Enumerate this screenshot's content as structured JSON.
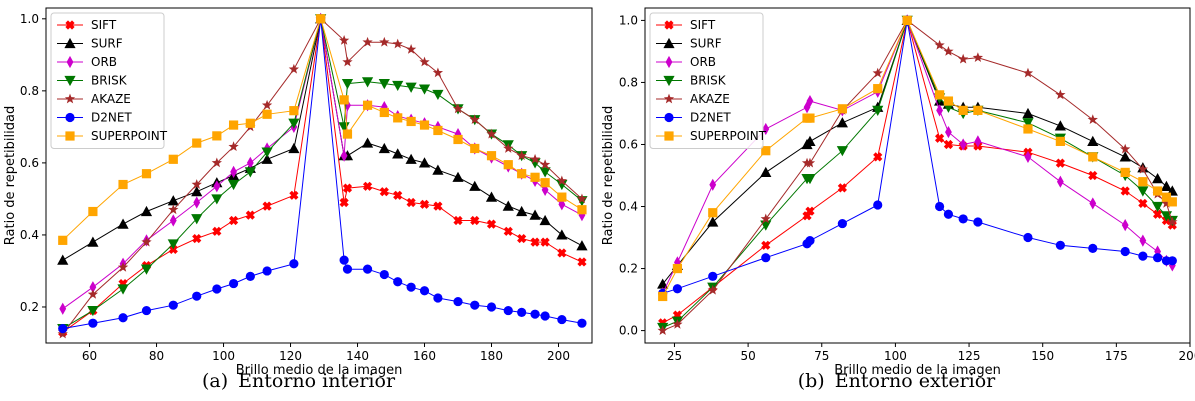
{
  "chart_data": [
    {
      "type": "line",
      "xlabel": "Brillo medio de la imagen",
      "ylabel": "Ratio de repetibilidad",
      "xlim": [
        47,
        210
      ],
      "ylim": [
        0.1,
        1.03
      ],
      "xticks": [
        60,
        80,
        100,
        120,
        140,
        160,
        180,
        200
      ],
      "yticks": [
        0.2,
        0.4,
        0.6,
        0.8,
        1.0
      ],
      "ytick_labels": [
        "0.2",
        "0.4",
        "0.6",
        "0.8",
        "1.0"
      ],
      "legend_position": "upper-left",
      "caption_label": "(a)",
      "caption_text": "Entorno interior",
      "x": [
        52,
        61,
        70,
        77,
        85,
        92,
        98,
        103,
        108,
        113,
        121,
        129,
        136,
        137,
        143,
        148,
        152,
        156,
        160,
        164,
        170,
        175,
        180,
        185,
        189,
        193,
        196,
        201,
        207
      ],
      "series": [
        {
          "name": "SIFT",
          "color": "#ff0000",
          "marker": "x",
          "values": [
            0.13,
            0.19,
            0.265,
            0.315,
            0.36,
            0.39,
            0.41,
            0.44,
            0.455,
            0.48,
            0.51,
            1.0,
            0.49,
            0.53,
            0.535,
            0.52,
            0.51,
            0.49,
            0.485,
            0.48,
            0.44,
            0.44,
            0.43,
            0.41,
            0.39,
            0.38,
            0.38,
            0.35,
            0.325
          ]
        },
        {
          "name": "SURF",
          "color": "#000000",
          "marker": "^",
          "values": [
            0.33,
            0.38,
            0.43,
            0.465,
            0.495,
            0.52,
            0.545,
            0.565,
            0.585,
            0.61,
            0.64,
            1.0,
            0.62,
            0.62,
            0.655,
            0.64,
            0.625,
            0.61,
            0.6,
            0.58,
            0.56,
            0.535,
            0.505,
            0.48,
            0.465,
            0.455,
            0.44,
            0.4,
            0.37
          ]
        },
        {
          "name": "ORB",
          "color": "#cc00cc",
          "marker": "d",
          "values": [
            0.195,
            0.255,
            0.32,
            0.385,
            0.44,
            0.49,
            0.535,
            0.575,
            0.6,
            0.64,
            0.7,
            1.0,
            0.62,
            0.76,
            0.76,
            0.755,
            0.73,
            0.72,
            0.71,
            0.7,
            0.68,
            0.64,
            0.615,
            0.59,
            0.57,
            0.55,
            0.525,
            0.485,
            0.455
          ]
        },
        {
          "name": "BRISK",
          "color": "#007700",
          "marker": "v",
          "values": [
            0.14,
            0.19,
            0.25,
            0.305,
            0.375,
            0.445,
            0.5,
            0.54,
            0.575,
            0.63,
            0.71,
            1.0,
            0.7,
            0.82,
            0.825,
            0.82,
            0.815,
            0.81,
            0.805,
            0.79,
            0.75,
            0.72,
            0.68,
            0.65,
            0.62,
            0.6,
            0.575,
            0.54,
            0.495
          ]
        },
        {
          "name": "AKAZE",
          "color": "#a52a2a",
          "marker": "*",
          "values": [
            0.125,
            0.235,
            0.31,
            0.38,
            0.47,
            0.54,
            0.6,
            0.645,
            0.7,
            0.76,
            0.86,
            1.0,
            0.94,
            0.88,
            0.935,
            0.935,
            0.93,
            0.915,
            0.88,
            0.85,
            0.75,
            0.72,
            0.68,
            0.64,
            0.62,
            0.61,
            0.595,
            0.55,
            0.5
          ]
        },
        {
          "name": "D2NET",
          "color": "#0000ff",
          "marker": "o",
          "values": [
            0.14,
            0.155,
            0.17,
            0.19,
            0.205,
            0.23,
            0.25,
            0.265,
            0.285,
            0.3,
            0.32,
            1.0,
            0.33,
            0.305,
            0.305,
            0.29,
            0.27,
            0.255,
            0.245,
            0.225,
            0.215,
            0.205,
            0.2,
            0.19,
            0.185,
            0.18,
            0.175,
            0.165,
            0.155
          ]
        },
        {
          "name": "SUPERPOINT",
          "color": "#ffa500",
          "marker": "s",
          "values": [
            0.385,
            0.465,
            0.54,
            0.57,
            0.61,
            0.655,
            0.675,
            0.705,
            0.71,
            0.735,
            0.745,
            1.0,
            0.775,
            0.68,
            0.76,
            0.74,
            0.725,
            0.715,
            0.705,
            0.69,
            0.665,
            0.64,
            0.62,
            0.595,
            0.57,
            0.56,
            0.545,
            0.505,
            0.47
          ]
        }
      ]
    },
    {
      "type": "line",
      "xlabel": "Brillo medio de la imagen",
      "ylabel": "Ratio de repetibilidad",
      "xlim": [
        15,
        200
      ],
      "ylim": [
        -0.04,
        1.04
      ],
      "xticks": [
        25,
        50,
        75,
        100,
        125,
        150,
        175,
        200
      ],
      "yticks": [
        0.0,
        0.2,
        0.4,
        0.6,
        0.8,
        1.0
      ],
      "ytick_labels": [
        "0.0",
        "0.2",
        "0.4",
        "0.6",
        "0.8",
        "1.0"
      ],
      "legend_position": "upper-left",
      "caption_label": "(b)",
      "caption_text": "Entorno exterior",
      "x": [
        21,
        26,
        38,
        56,
        70,
        71,
        82,
        94,
        104,
        115,
        118,
        123,
        128,
        145,
        156,
        167,
        178,
        184,
        189,
        192,
        194
      ],
      "series": [
        {
          "name": "SIFT",
          "color": "#ff0000",
          "marker": "x",
          "values": [
            0.025,
            0.05,
            0.14,
            0.275,
            0.37,
            0.385,
            0.46,
            0.56,
            1.0,
            0.62,
            0.6,
            0.595,
            0.595,
            0.575,
            0.54,
            0.5,
            0.45,
            0.41,
            0.375,
            0.355,
            0.34
          ]
        },
        {
          "name": "SURF",
          "color": "#000000",
          "marker": "^",
          "values": [
            0.15,
            0.21,
            0.35,
            0.51,
            0.6,
            0.61,
            0.67,
            0.72,
            1.0,
            0.74,
            0.73,
            0.72,
            0.72,
            0.7,
            0.66,
            0.61,
            0.56,
            0.525,
            0.49,
            0.465,
            0.45
          ]
        },
        {
          "name": "ORB",
          "color": "#cc00cc",
          "marker": "d",
          "values": [
            0.12,
            0.22,
            0.47,
            0.65,
            0.72,
            0.74,
            0.71,
            0.77,
            1.0,
            0.71,
            0.64,
            0.6,
            0.61,
            0.56,
            0.48,
            0.41,
            0.34,
            0.29,
            0.255,
            0.225,
            0.21
          ]
        },
        {
          "name": "BRISK",
          "color": "#007700",
          "marker": "v",
          "values": [
            0.01,
            0.03,
            0.14,
            0.34,
            0.49,
            0.49,
            0.58,
            0.71,
            1.0,
            0.75,
            0.72,
            0.7,
            0.71,
            0.67,
            0.62,
            0.56,
            0.5,
            0.45,
            0.4,
            0.37,
            0.355
          ]
        },
        {
          "name": "AKAZE",
          "color": "#a52a2a",
          "marker": "*",
          "values": [
            0.0,
            0.02,
            0.13,
            0.36,
            0.54,
            0.54,
            0.71,
            0.83,
            1.0,
            0.92,
            0.9,
            0.875,
            0.88,
            0.83,
            0.76,
            0.68,
            0.585,
            0.52,
            0.44,
            0.41,
            0.35
          ]
        },
        {
          "name": "D2NET",
          "color": "#0000ff",
          "marker": "o",
          "values": [
            0.12,
            0.135,
            0.175,
            0.235,
            0.28,
            0.29,
            0.345,
            0.405,
            1.0,
            0.4,
            0.375,
            0.36,
            0.35,
            0.3,
            0.275,
            0.265,
            0.255,
            0.24,
            0.235,
            0.225,
            0.225
          ]
        },
        {
          "name": "SUPERPOINT",
          "color": "#ffa500",
          "marker": "s",
          "values": [
            0.11,
            0.2,
            0.38,
            0.58,
            0.685,
            0.685,
            0.715,
            0.78,
            1.0,
            0.76,
            0.74,
            0.71,
            0.71,
            0.65,
            0.61,
            0.56,
            0.51,
            0.48,
            0.45,
            0.43,
            0.415
          ]
        }
      ]
    }
  ]
}
